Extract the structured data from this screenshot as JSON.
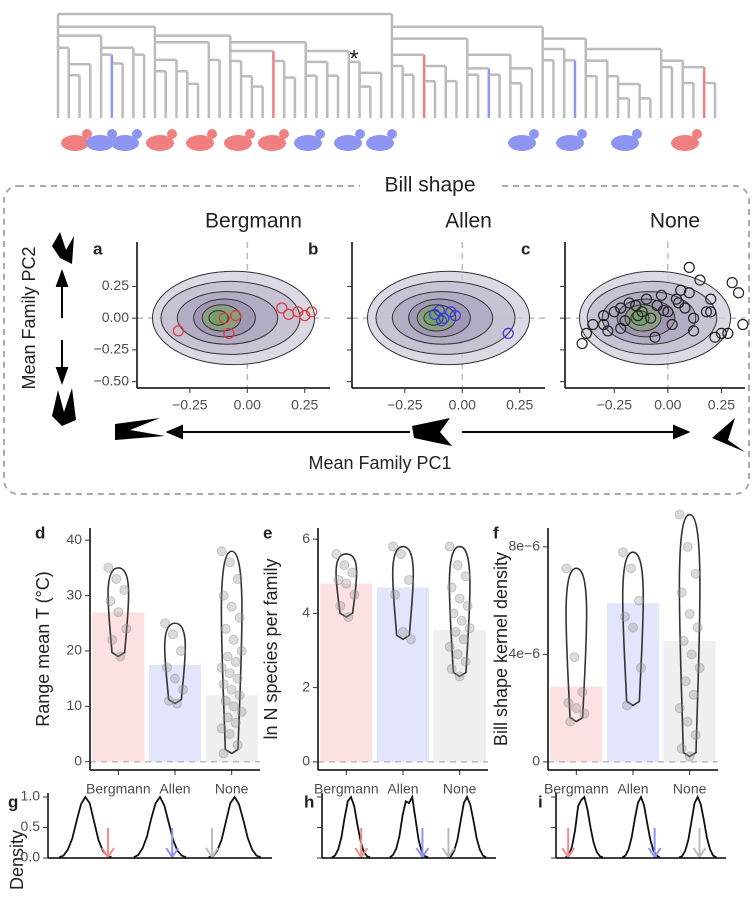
{
  "figure": {
    "asterisk": "*",
    "box_title": "Bill shape",
    "x_label": "Mean Family PC1",
    "y_label": "Mean Family PC2",
    "density_label": "Density"
  },
  "chart_data": [
    {
      "type": "scatter",
      "panel": "a",
      "title": "Bergmann",
      "color": "#e03a3a",
      "x": [
        -0.3,
        -0.08,
        -0.05,
        0.15,
        0.18,
        0.22,
        0.25,
        0.28,
        -0.1
      ],
      "values": [
        -0.1,
        -0.12,
        0.02,
        0.08,
        0.03,
        0.05,
        0.02,
        0.05,
        0.0
      ],
      "xlim": [
        -0.48,
        0.36
      ],
      "ylim": [
        -0.55,
        0.6
      ],
      "xticks": [
        {
          "value": -0.25,
          "label": "−0.25"
        },
        {
          "value": 0,
          "label": "0.00"
        },
        0.25
      ],
      "yticks": [
        {
          "value": -0.5,
          "label": "−0.50"
        },
        {
          "value": -0.25,
          "label": "−0.25"
        },
        {
          "value": 0,
          "label": "0.00"
        },
        0.25
      ],
      "y_tick_labels": true
    },
    {
      "type": "scatter",
      "panel": "b",
      "title": "Allen",
      "color": "#3a3ae0",
      "x": [
        -0.12,
        -0.1,
        -0.08,
        -0.05,
        -0.03,
        -0.09,
        0.2
      ],
      "values": [
        0.03,
        0.06,
        0.0,
        0.05,
        0.02,
        -0.02,
        -0.12
      ],
      "xlim": [
        -0.48,
        0.36
      ],
      "ylim": [
        -0.55,
        0.6
      ],
      "xticks": [
        {
          "value": -0.25,
          "label": "−0.25"
        },
        {
          "value": 0,
          "label": "0.00"
        },
        0.25
      ],
      "yticks": [
        -0.5,
        -0.25,
        0,
        0.25
      ],
      "y_tick_labels": false
    },
    {
      "type": "scatter",
      "panel": "c",
      "title": "None",
      "color": "#222222",
      "x": [
        -0.4,
        -0.38,
        -0.35,
        -0.3,
        -0.28,
        -0.25,
        -0.22,
        -0.2,
        -0.18,
        -0.15,
        -0.12,
        -0.1,
        -0.08,
        -0.05,
        -0.03,
        0,
        0.02,
        0.05,
        0.08,
        0.1,
        0.12,
        0.15,
        0.18,
        0.2,
        0.22,
        0.25,
        0.28,
        0.3,
        0.33,
        0.12,
        -0.06,
        -0.14,
        0.04,
        -0.22,
        0.1,
        0.2,
        0.35,
        -0.3,
        0.06,
        -0.02
      ],
      "values": [
        -0.2,
        -0.12,
        -0.05,
        0.02,
        -0.1,
        0.05,
        0.08,
        -0.02,
        0.12,
        0.1,
        0.05,
        0.15,
        0,
        0.1,
        0.18,
        0.05,
        -0.05,
        0.12,
        0.08,
        0.2,
        0,
        0.3,
        0.05,
        0.05,
        -0.15,
        -0.12,
        -0.12,
        0.28,
        0.2,
        -0.1,
        -0.15,
        0.02,
        0.15,
        -0.08,
        0.4,
        0.15,
        -0.05,
        -0.05,
        0.22,
        0.06
      ],
      "xlim": [
        -0.48,
        0.36
      ],
      "ylim": [
        -0.55,
        0.6
      ],
      "xticks": [
        {
          "value": -0.25,
          "label": "−0.25"
        },
        {
          "value": 0,
          "label": "0.00"
        },
        0.25
      ],
      "yticks": [
        -0.5,
        -0.25,
        0,
        0.25
      ],
      "y_tick_labels": false
    },
    {
      "type": "bar",
      "panel": "d",
      "y_label": "Range mean T (°C)",
      "categories": [
        "Bergmann",
        "Allen",
        "None"
      ],
      "values": [
        27,
        17.5,
        12
      ],
      "colors": [
        "#fbe1e1",
        "#e2e5fb",
        "#efefef"
      ],
      "points": [
        [
          35,
          33,
          31,
          29,
          27,
          24,
          22,
          19
        ],
        [
          25,
          23,
          20,
          17,
          15,
          13,
          11,
          10.5
        ],
        [
          38,
          36,
          33,
          30,
          28,
          26,
          24,
          22,
          20,
          19,
          18,
          17,
          16,
          15,
          14,
          13,
          12,
          11,
          10,
          9,
          8,
          7,
          6,
          5,
          3,
          1.5
        ]
      ],
      "ylim": [
        -1.5,
        42.2
      ],
      "yticks": [
        0,
        10,
        20,
        30,
        40
      ]
    },
    {
      "type": "bar",
      "panel": "e",
      "y_label": "ln N species per family",
      "categories": [
        "Bergmann",
        "Allen",
        "None"
      ],
      "values": [
        4.8,
        4.7,
        3.55
      ],
      "colors": [
        "#fbe1e1",
        "#e2e5fb",
        "#efefef"
      ],
      "points": [
        [
          5.6,
          5.3,
          5.1,
          4.9,
          4.8,
          4.5,
          4.2,
          3.9
        ],
        [
          5.8,
          5.6,
          4.9,
          4.5,
          3.5,
          3.3
        ],
        [
          5.8,
          5.3,
          5,
          4.7,
          4.4,
          4.2,
          4,
          3.8,
          3.6,
          3.5,
          3.3,
          3.1,
          2.9,
          2.7,
          2.5,
          2.3
        ]
      ],
      "ylim": [
        -0.22,
        6.3
      ],
      "yticks": [
        0,
        2,
        4,
        6
      ]
    },
    {
      "type": "bar",
      "panel": "f",
      "y_label": "Bill shape kernel density",
      "categories": [
        "Bergmann",
        "Allen",
        "None"
      ],
      "values": [
        2.8e-06,
        5.9e-06,
        4.5e-06
      ],
      "colors": [
        "#fbe1e1",
        "#e2e5fb",
        "#efefef"
      ],
      "points": [
        [
          7.2e-06,
          3.9e-06,
          2.6e-06,
          2.2e-06,
          2e-06,
          1.8e-06,
          1.5e-06
        ],
        [
          7.8e-06,
          7.2e-06,
          6e-06,
          5.4e-06,
          5e-06,
          3.5e-06,
          2.1e-06
        ],
        [
          9.2e-06,
          8e-06,
          7e-06,
          6.3e-06,
          5.5e-06,
          5e-06,
          4.5e-06,
          4e-06,
          3.5e-06,
          3e-06,
          2.5e-06,
          2e-06,
          1.5e-06,
          1e-06,
          5e-07,
          2e-07
        ]
      ],
      "ylim": [
        -3e-07,
        8.7e-06
      ],
      "yticks": [
        0,
        {
          "value": 4e-06,
          "label": "4e−6"
        },
        {
          "value": 8e-06,
          "label": "8e−6"
        }
      ]
    },
    {
      "type": "line",
      "panel": "g",
      "x": [
        -3,
        -2.5,
        -2,
        -1.5,
        -1,
        -0.5,
        0,
        0.5,
        1,
        1.5,
        2,
        2.5,
        3
      ],
      "series": [
        {
          "color": "#111111",
          "values": [
            0.01,
            0.04,
            0.14,
            0.32,
            0.61,
            0.88,
            1,
            0.9,
            0.6,
            0.3,
            0.12,
            0.04,
            0.01
          ]
        },
        {
          "color": "#111111",
          "values": [
            0.01,
            0.05,
            0.16,
            0.35,
            0.65,
            0.9,
            1,
            0.86,
            0.58,
            0.3,
            0.12,
            0.04,
            0.01
          ]
        },
        {
          "color": "#111111",
          "values": [
            0.01,
            0.03,
            0.12,
            0.3,
            0.6,
            0.9,
            1,
            0.88,
            0.62,
            0.33,
            0.14,
            0.04,
            0.01
          ]
        }
      ],
      "markers": [
        {
          "x": 2.6,
          "color": "#f28b8b"
        },
        {
          "x": 1.4,
          "color": "#8c96f0"
        },
        {
          "x": -2.6,
          "color": "#bbbbbb"
        }
      ],
      "xlim": [
        -3.6,
        3.6
      ],
      "ylim": [
        0,
        1
      ],
      "yticks": [
        {
          "value": 0,
          "label": "0.0"
        },
        {
          "value": 0.5,
          "label": "0.5"
        },
        {
          "value": 1,
          "label": "1.0"
        }
      ]
    },
    {
      "type": "line",
      "panel": "h",
      "x": [
        -3,
        -2.5,
        -2,
        -1.5,
        -1,
        -0.5,
        0,
        0.5,
        1,
        1.5,
        2,
        2.5,
        3
      ],
      "series": [
        {
          "color": "#111111",
          "values": [
            0.01,
            0.04,
            0.14,
            0.34,
            0.66,
            0.93,
            1,
            0.85,
            0.55,
            0.28,
            0.1,
            0.03,
            0.01
          ]
        },
        {
          "color": "#111111",
          "values": [
            0.01,
            0.05,
            0.15,
            0.36,
            0.7,
            0.93,
            0.9,
            1,
            0.65,
            0.3,
            0.1,
            0.03,
            0.01
          ]
        },
        {
          "color": "#111111",
          "values": [
            0.01,
            0.03,
            0.12,
            0.3,
            0.6,
            0.9,
            1,
            0.88,
            0.62,
            0.33,
            0.14,
            0.04,
            0.01
          ]
        }
      ],
      "markers": [
        {
          "x": 1.6,
          "color": "#f28b8b"
        },
        {
          "x": 2.1,
          "color": "#8c96f0"
        },
        {
          "x": -2.9,
          "color": "#bbbbbb"
        }
      ],
      "xlim": [
        -3.6,
        3.6
      ],
      "ylim": [
        0,
        1
      ],
      "yticks": [
        0,
        0.5,
        1
      ]
    },
    {
      "type": "line",
      "panel": "i",
      "x": [
        -3,
        -2.5,
        -2,
        -1.5,
        -1,
        -0.5,
        0,
        0.5,
        1,
        1.5,
        2,
        2.5,
        3
      ],
      "series": [
        {
          "color": "#111111",
          "values": [
            0.01,
            0.05,
            0.18,
            0.45,
            0.85,
            0.95,
            1,
            0.8,
            0.5,
            0.25,
            0.1,
            0.03,
            0.01
          ]
        },
        {
          "color": "#111111",
          "values": [
            0.01,
            0.04,
            0.14,
            0.34,
            0.64,
            0.9,
            1,
            0.86,
            0.57,
            0.3,
            0.12,
            0.04,
            0.01
          ]
        },
        {
          "color": "#111111",
          "values": [
            0.01,
            0.03,
            0.12,
            0.3,
            0.6,
            0.9,
            1,
            0.88,
            0.62,
            0.33,
            0.14,
            0.04,
            0.01
          ]
        }
      ],
      "markers": [
        {
          "x": -2.6,
          "color": "#f28b8b"
        },
        {
          "x": 2.2,
          "color": "#8c96f0"
        },
        {
          "x": 0.3,
          "color": "#bbbbbb"
        }
      ],
      "xlim": [
        -3.6,
        3.6
      ],
      "ylim": [
        0,
        1
      ],
      "yticks": [
        0,
        0.5,
        1
      ]
    }
  ]
}
